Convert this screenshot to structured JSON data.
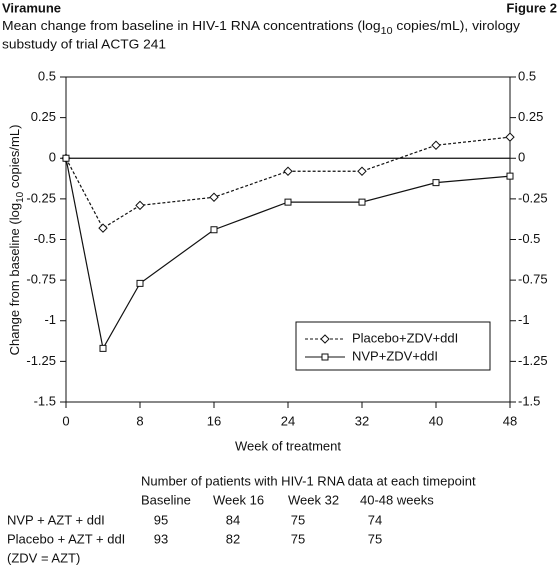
{
  "header": {
    "left": "Viramune",
    "right": "Figure 2"
  },
  "chart_data": {
    "type": "line",
    "title": [
      "Mean change from baseline in HIV-1 RNA concentrations (log",
      "10",
      " copies/mL), virology",
      "substudy of trial ACTG 241"
    ],
    "y_label": [
      "Change from baseline (log",
      "10",
      " copies/mL)"
    ],
    "x_label": "Week of treatment",
    "x": [
      0,
      4,
      8,
      16,
      24,
      32,
      40,
      48
    ],
    "series": [
      {
        "name": "Placebo+ZDV+ddI",
        "color": "#111111",
        "line_style": "dashed",
        "marker": "diamond",
        "values": [
          0,
          -0.43,
          -0.29,
          -0.24,
          -0.08,
          -0.08,
          0.08,
          0.13
        ]
      },
      {
        "name": "NVP+ZDV+ddI",
        "color": "#111111",
        "line_style": "solid",
        "marker": "square",
        "values": [
          0,
          -1.17,
          -0.77,
          -0.44,
          -0.27,
          -0.27,
          -0.15,
          -0.11
        ]
      }
    ],
    "xlim": [
      0,
      48
    ],
    "xticks": [
      0,
      8,
      16,
      24,
      32,
      40,
      48
    ],
    "ylim": [
      -1.5,
      0.5
    ],
    "yticks": [
      -1.5,
      -1.25,
      -1,
      -0.75,
      -0.5,
      -0.25,
      0,
      0.25,
      0.5
    ],
    "y2lim": [
      -1.5,
      0.5
    ],
    "y2ticks": [
      -1.5,
      -1.25,
      -1,
      -0.75,
      -0.5,
      -0.25,
      0,
      0.25,
      0.5
    ],
    "legend": "lower right"
  },
  "table": {
    "title": "Number of patients with HIV-1 RNA data at each timepoint",
    "columns": [
      "Baseline",
      "Week 16",
      "Week 32",
      "40-48 weeks"
    ],
    "rows": [
      [
        "NVP + AZT + ddI",
        "95",
        "84",
        "75",
        "74"
      ],
      [
        "Placebo + AZT + ddI",
        "93",
        "82",
        "75",
        "75"
      ]
    ],
    "note": "(ZDV = AZT)"
  }
}
